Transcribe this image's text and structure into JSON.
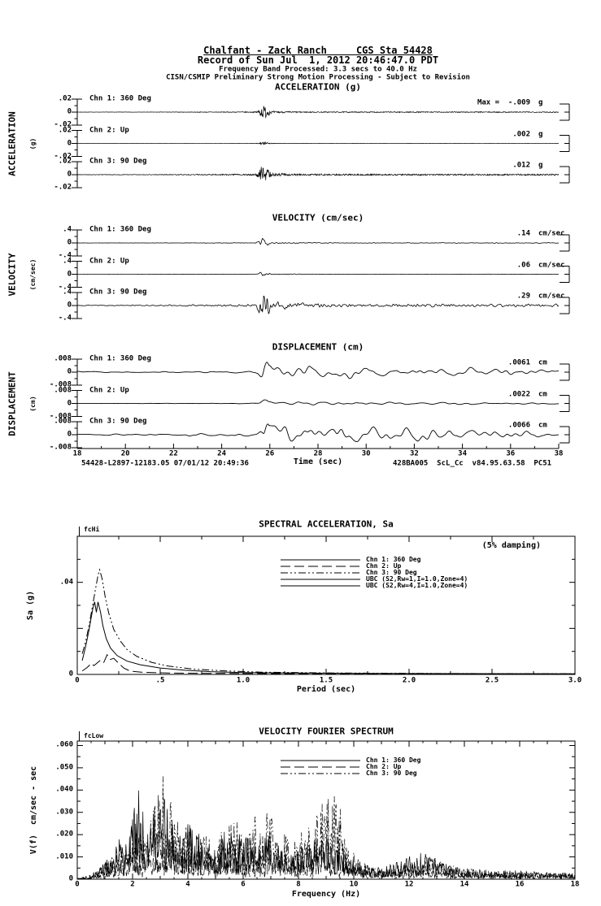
{
  "page": {
    "background": "#ffffff",
    "ink": "#000000"
  },
  "header": {
    "line1": "Chalfant - Zack Ranch     CGS Sta 54428",
    "line2": "Record of Sun Jul  1, 2012 20:46:47.0 PDT",
    "line3": "Frequency Band Processed: 3.3 secs to 40.0 Hz",
    "line4": "CISN/CSMIP Preliminary Strong Motion Processing - Subject to Revision"
  },
  "time_history": {
    "xlabel": "Time (sec)",
    "x_ticks": [
      "18",
      "20",
      "22",
      "24",
      "26",
      "28",
      "30",
      "32",
      "34",
      "36",
      "38"
    ],
    "footer_left": "54428-L2897-12183.05 07/01/12 20:49:36",
    "footer_right": "428BA005  ScL_Cc  v84.95.63.58  PC51",
    "panels": [
      {
        "id": "acceleration",
        "title": "ACCELERATION (g)",
        "side_label": "ACCELERATION",
        "side_units": "(g)",
        "y_ticks": [
          ".02",
          "0",
          "-.02"
        ],
        "y_full_scale": 0.02,
        "signal": "hf",
        "channels": [
          {
            "label": "Chn 1: 360 Deg",
            "max_text": "Max =  -.009",
            "unit": "g",
            "peak": -0.009
          },
          {
            "label": "Chn 2: Up",
            "max_text": ".002",
            "unit": "g",
            "peak": 0.002
          },
          {
            "label": "Chn 3: 90 Deg",
            "max_text": ".012",
            "unit": "g",
            "peak": 0.012
          }
        ]
      },
      {
        "id": "velocity",
        "title": "VELOCITY (cm/sec)",
        "side_label": "VELOCITY",
        "side_units": "(cm/sec)",
        "y_ticks": [
          ".4",
          "0",
          "-.4"
        ],
        "y_full_scale": 0.4,
        "signal": "mf",
        "channels": [
          {
            "label": "Chn 1: 360 Deg",
            "max_text": ".14",
            "unit": "cm/sec",
            "peak": 0.14
          },
          {
            "label": "Chn 2: Up",
            "max_text": ".06",
            "unit": "cm/sec",
            "peak": 0.06
          },
          {
            "label": "Chn 3: 90 Deg",
            "max_text": ".29",
            "unit": "cm/sec",
            "peak": 0.29
          }
        ]
      },
      {
        "id": "displacement",
        "title": "DISPLACEMENT (cm)",
        "side_label": "DISPLACEMENT",
        "side_units": "(cm)",
        "y_ticks": [
          ".008",
          "0",
          "-.008"
        ],
        "y_full_scale": 0.008,
        "signal": "lf",
        "channels": [
          {
            "label": "Chn 1: 360 Deg",
            "max_text": ".0061",
            "unit": "cm",
            "peak": 0.0061
          },
          {
            "label": "Chn 2: Up",
            "max_text": ".0022",
            "unit": "cm",
            "peak": 0.0022
          },
          {
            "label": "Chn 3: 90 Deg",
            "max_text": ".0066",
            "unit": "cm",
            "peak": 0.0066
          }
        ]
      }
    ]
  },
  "spectral": {
    "title": "SPECTRAL ACCELERATION, Sa",
    "corner_label": "fcHi",
    "damping_note": "(5% damping)",
    "ylabel": "Sa (g)",
    "xlabel": "Period (sec)",
    "x_ticks": [
      "0",
      ".5",
      "1.0",
      "1.5",
      "2.0",
      "2.5",
      "3.0"
    ],
    "y_tick_labels": [
      {
        "v": 0.04,
        "t": ".04"
      },
      {
        "v": 0,
        "t": "0"
      }
    ],
    "legend": [
      {
        "name": "Chn 1: 360 Deg",
        "style": "solid"
      },
      {
        "name": "Chn 2: Up",
        "style": "longdash"
      },
      {
        "name": "Chn 3: 90 Deg",
        "style": "dashdot"
      },
      {
        "name": "UBC (S2,Rw=1,I=1.0,Zone=4)",
        "style": "solid"
      },
      {
        "name": "UBC (S2,Rw=4,I=1.0,Zone=4)",
        "style": "solid"
      }
    ]
  },
  "fourier": {
    "title": "VELOCITY FOURIER SPECTRUM",
    "corner_label": "fcLow",
    "ylabel": "V(f)  cm/sec - sec",
    "xlabel": "Frequency (Hz)",
    "x_ticks": [
      "0",
      "2",
      "4",
      "6",
      "8",
      "10",
      "12",
      "14",
      "16",
      "18"
    ],
    "y_tick_labels": [
      {
        "v": 0.06,
        "t": ".060"
      },
      {
        "v": 0.05,
        "t": ".050"
      },
      {
        "v": 0.04,
        "t": ".040"
      },
      {
        "v": 0.03,
        "t": ".030"
      },
      {
        "v": 0.02,
        "t": ".020"
      },
      {
        "v": 0.01,
        "t": ".010"
      },
      {
        "v": 0,
        "t": "0"
      }
    ],
    "legend": [
      {
        "name": "Chn 1: 360 Deg",
        "style": "solid"
      },
      {
        "name": "Chn 2: Up",
        "style": "longdash"
      },
      {
        "name": "Chn 3: 90 Deg",
        "style": "dashdot"
      }
    ]
  },
  "chart_data": [
    {
      "type": "line",
      "title": "ACCELERATION (g)",
      "xlabel": "Time (sec)",
      "xlim": [
        18,
        38
      ],
      "ylim": [
        -0.02,
        0.02
      ],
      "units": "g",
      "event_arrival_sec": 25.7,
      "series": [
        {
          "name": "Chn 1: 360 Deg",
          "peak": -0.009
        },
        {
          "name": "Chn 2: Up",
          "peak": 0.002
        },
        {
          "name": "Chn 3: 90 Deg",
          "peak": 0.012
        }
      ]
    },
    {
      "type": "line",
      "title": "VELOCITY (cm/sec)",
      "xlabel": "Time (sec)",
      "xlim": [
        18,
        38
      ],
      "ylim": [
        -0.4,
        0.4
      ],
      "units": "cm/sec",
      "event_arrival_sec": 25.7,
      "series": [
        {
          "name": "Chn 1: 360 Deg",
          "peak": 0.14
        },
        {
          "name": "Chn 2: Up",
          "peak": 0.06
        },
        {
          "name": "Chn 3: 90 Deg",
          "peak": 0.29
        }
      ]
    },
    {
      "type": "line",
      "title": "DISPLACEMENT (cm)",
      "xlabel": "Time (sec)",
      "xlim": [
        18,
        38
      ],
      "ylim": [
        -0.008,
        0.008
      ],
      "units": "cm",
      "event_arrival_sec": 25.7,
      "series": [
        {
          "name": "Chn 1: 360 Deg",
          "peak": 0.0061
        },
        {
          "name": "Chn 2: Up",
          "peak": 0.0022
        },
        {
          "name": "Chn 3: 90 Deg",
          "peak": 0.0066
        }
      ]
    },
    {
      "type": "line",
      "title": "SPECTRAL ACCELERATION, Sa",
      "xlabel": "Period (sec)",
      "ylabel": "Sa (g)",
      "xlim": [
        0,
        3.0
      ],
      "ylim": [
        0,
        0.06
      ],
      "damping": "(5% damping)",
      "legend_position": "upper-center",
      "series": [
        {
          "name": "Chn 1: 360 Deg",
          "style": "solid",
          "points": [
            [
              0.03,
              0.006
            ],
            [
              0.05,
              0.012
            ],
            [
              0.07,
              0.019
            ],
            [
              0.085,
              0.025
            ],
            [
              0.095,
              0.029
            ],
            [
              0.105,
              0.0315
            ],
            [
              0.115,
              0.027
            ],
            [
              0.125,
              0.0315
            ],
            [
              0.14,
              0.027
            ],
            [
              0.155,
              0.021
            ],
            [
              0.175,
              0.0155
            ],
            [
              0.2,
              0.0115
            ],
            [
              0.24,
              0.0082
            ],
            [
              0.3,
              0.0058
            ],
            [
              0.38,
              0.0042
            ],
            [
              0.5,
              0.0028
            ],
            [
              0.65,
              0.0018
            ],
            [
              0.8,
              0.0012
            ],
            [
              1.0,
              0.0008
            ],
            [
              1.3,
              0.0006
            ],
            [
              1.7,
              0.00045
            ],
            [
              2.2,
              0.00035
            ],
            [
              3.0,
              0.00025
            ]
          ]
        },
        {
          "name": "Chn 2: Up",
          "style": "longdash",
          "points": [
            [
              0.03,
              0.0015
            ],
            [
              0.06,
              0.003
            ],
            [
              0.085,
              0.0048
            ],
            [
              0.1,
              0.0038
            ],
            [
              0.12,
              0.005
            ],
            [
              0.14,
              0.0062
            ],
            [
              0.16,
              0.0052
            ],
            [
              0.18,
              0.0085
            ],
            [
              0.2,
              0.0065
            ],
            [
              0.22,
              0.007
            ],
            [
              0.25,
              0.0048
            ],
            [
              0.28,
              0.0028
            ],
            [
              0.32,
              0.0014
            ],
            [
              0.4,
              0.0009
            ],
            [
              0.55,
              0.0006
            ],
            [
              0.8,
              0.00045
            ],
            [
              1.2,
              0.00035
            ],
            [
              2.0,
              0.00025
            ],
            [
              3.0,
              0.0002
            ]
          ]
        },
        {
          "name": "Chn 3: 90 Deg",
          "style": "dashdot",
          "points": [
            [
              0.03,
              0.009
            ],
            [
              0.05,
              0.014
            ],
            [
              0.07,
              0.021
            ],
            [
              0.09,
              0.029
            ],
            [
              0.11,
              0.037
            ],
            [
              0.125,
              0.043
            ],
            [
              0.135,
              0.0455
            ],
            [
              0.15,
              0.0415
            ],
            [
              0.17,
              0.033
            ],
            [
              0.19,
              0.0265
            ],
            [
              0.22,
              0.0195
            ],
            [
              0.26,
              0.0145
            ],
            [
              0.3,
              0.0108
            ],
            [
              0.36,
              0.0078
            ],
            [
              0.45,
              0.0052
            ],
            [
              0.55,
              0.0036
            ],
            [
              0.7,
              0.0023
            ],
            [
              0.9,
              0.0015
            ],
            [
              1.1,
              0.001
            ],
            [
              1.5,
              0.00065
            ],
            [
              2.0,
              0.00045
            ],
            [
              2.5,
              0.00035
            ],
            [
              3.0,
              0.0003
            ]
          ]
        },
        {
          "name": "UBC (S2,Rw=1,I=1.0,Zone=4)",
          "style": "solid",
          "points": [],
          "note": "above Sa axis range (off scale)"
        },
        {
          "name": "UBC (S2,Rw=4,I=1.0,Zone=4)",
          "style": "solid",
          "points": [],
          "note": "above Sa axis range (off scale)"
        }
      ]
    },
    {
      "type": "line",
      "title": "VELOCITY FOURIER SPECTRUM",
      "xlabel": "Frequency (Hz)",
      "ylabel": "V(f) cm/sec - sec",
      "xlim": [
        0,
        18
      ],
      "ylim": [
        0,
        0.062
      ],
      "legend_position": "upper-center",
      "data_note": "noisy spectra; envelope estimates below",
      "series": [
        {
          "name": "Chn 1: 360 Deg",
          "style": "solid",
          "envelope": [
            [
              0,
              0.0005
            ],
            [
              0.5,
              0.002
            ],
            [
              0.8,
              0.006
            ],
            [
              1.2,
              0.012
            ],
            [
              1.6,
              0.02
            ],
            [
              2.0,
              0.03
            ],
            [
              2.2,
              0.046
            ],
            [
              2.5,
              0.02
            ],
            [
              3.0,
              0.045
            ],
            [
              3.3,
              0.03
            ],
            [
              3.6,
              0.025
            ],
            [
              4.0,
              0.028
            ],
            [
              4.5,
              0.022
            ],
            [
              5.0,
              0.015
            ],
            [
              5.5,
              0.025
            ],
            [
              6.0,
              0.02
            ],
            [
              6.5,
              0.018
            ],
            [
              7.0,
              0.02
            ],
            [
              7.5,
              0.015
            ],
            [
              8.0,
              0.012
            ],
            [
              8.5,
              0.02
            ],
            [
              9.0,
              0.018
            ],
            [
              9.5,
              0.015
            ],
            [
              10.0,
              0.01
            ],
            [
              10.5,
              0.006
            ],
            [
              11.0,
              0.005
            ],
            [
              11.5,
              0.008
            ],
            [
              12.0,
              0.012
            ],
            [
              12.5,
              0.014
            ],
            [
              13.0,
              0.01
            ],
            [
              13.5,
              0.006
            ],
            [
              14,
              0.005
            ],
            [
              15,
              0.004
            ],
            [
              16,
              0.004
            ],
            [
              17,
              0.003
            ],
            [
              18,
              0.003
            ]
          ]
        },
        {
          "name": "Chn 2: Up",
          "style": "longdash",
          "envelope": [
            [
              0,
              0.0003
            ],
            [
              0.5,
              0.001
            ],
            [
              1,
              0.004
            ],
            [
              1.5,
              0.008
            ],
            [
              2,
              0.012
            ],
            [
              2.5,
              0.015
            ],
            [
              3,
              0.012
            ],
            [
              3.5,
              0.014
            ],
            [
              4,
              0.012
            ],
            [
              4.5,
              0.014
            ],
            [
              5,
              0.012
            ],
            [
              5.5,
              0.01
            ],
            [
              6,
              0.012
            ],
            [
              6.5,
              0.01
            ],
            [
              7,
              0.012
            ],
            [
              7.5,
              0.01
            ],
            [
              8,
              0.009
            ],
            [
              8.7,
              0.014
            ],
            [
              9.3,
              0.01
            ],
            [
              10,
              0.008
            ],
            [
              10.5,
              0.005
            ],
            [
              11,
              0.004
            ],
            [
              12,
              0.005
            ],
            [
              13,
              0.004
            ],
            [
              14,
              0.003
            ],
            [
              15,
              0.003
            ],
            [
              16,
              0.002
            ],
            [
              17,
              0.002
            ],
            [
              18,
              0.002
            ]
          ]
        },
        {
          "name": "Chn 3: 90 Deg",
          "style": "dashdot",
          "envelope": [
            [
              0,
              0.0005
            ],
            [
              0.5,
              0.002
            ],
            [
              1,
              0.008
            ],
            [
              1.5,
              0.015
            ],
            [
              2,
              0.025
            ],
            [
              2.5,
              0.02
            ],
            [
              3.1,
              0.048
            ],
            [
              3.5,
              0.03
            ],
            [
              4,
              0.025
            ],
            [
              4.5,
              0.02
            ],
            [
              5,
              0.018
            ],
            [
              5.7,
              0.03
            ],
            [
              6,
              0.02
            ],
            [
              6.8,
              0.035
            ],
            [
              7.2,
              0.025
            ],
            [
              7.8,
              0.018
            ],
            [
              8.5,
              0.025
            ],
            [
              9.3,
              0.046
            ],
            [
              9.7,
              0.02
            ],
            [
              10,
              0.012
            ],
            [
              10.5,
              0.006
            ],
            [
              11,
              0.004
            ],
            [
              11.5,
              0.005
            ],
            [
              12,
              0.008
            ],
            [
              12.7,
              0.012
            ],
            [
              13.3,
              0.008
            ],
            [
              14,
              0.005
            ],
            [
              15,
              0.004
            ],
            [
              16,
              0.003
            ],
            [
              17,
              0.003
            ],
            [
              18,
              0.002
            ]
          ]
        }
      ]
    }
  ]
}
